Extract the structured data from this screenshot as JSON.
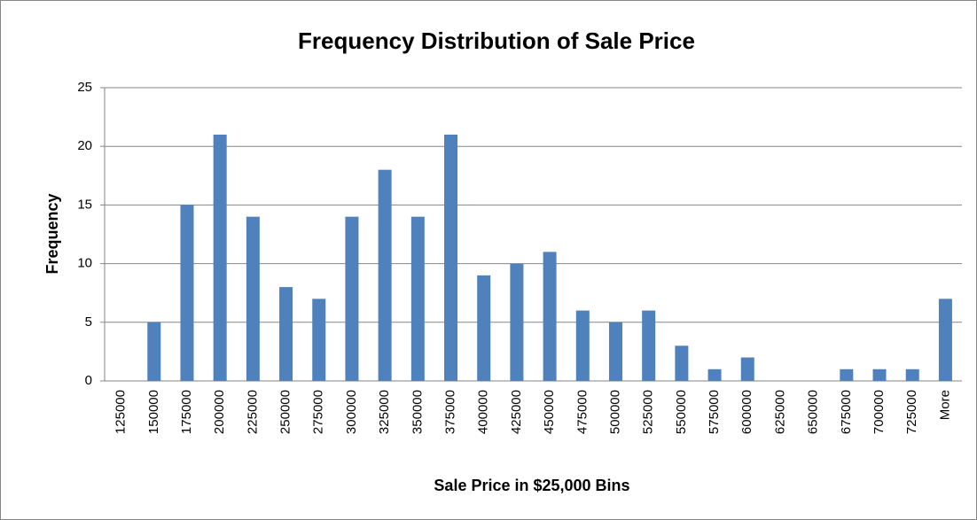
{
  "chart_data": {
    "type": "bar",
    "title": "Frequency Distribution of Sale Price",
    "x_label": "Sale Price in $25,000 Bins",
    "y_label": "Frequency",
    "categories": [
      "125000",
      "150000",
      "175000",
      "200000",
      "225000",
      "250000",
      "275000",
      "300000",
      "325000",
      "350000",
      "375000",
      "400000",
      "425000",
      "450000",
      "475000",
      "500000",
      "525000",
      "550000",
      "575000",
      "600000",
      "625000",
      "650000",
      "675000",
      "700000",
      "725000",
      "More"
    ],
    "values": [
      0,
      5,
      15,
      21,
      14,
      8,
      7,
      14,
      18,
      14,
      21,
      9,
      10,
      11,
      6,
      5,
      6,
      3,
      1,
      2,
      0,
      0,
      1,
      1,
      1,
      7
    ],
    "color": "#4f81bd",
    "ylim": [
      0,
      25
    ],
    "yticks": [
      0,
      5,
      10,
      15,
      20,
      25
    ],
    "grid": true
  }
}
